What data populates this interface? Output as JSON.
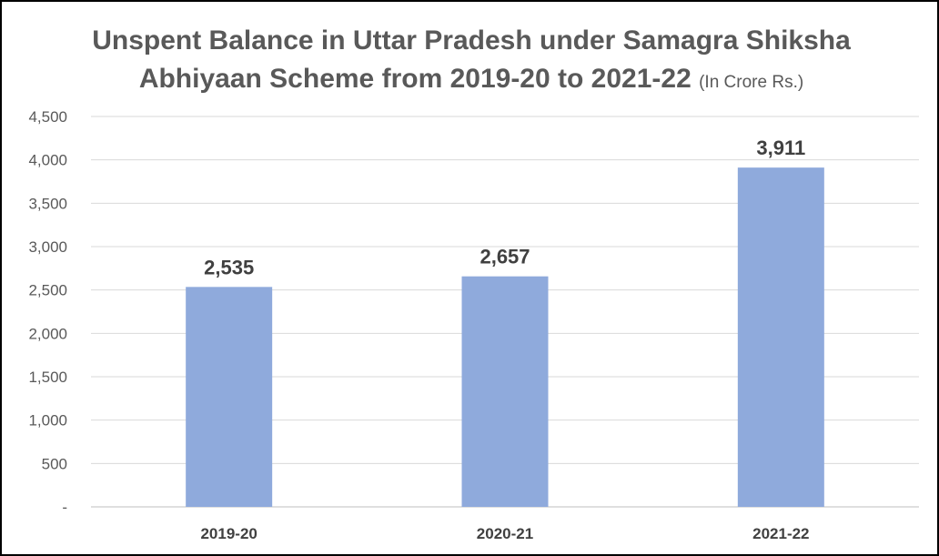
{
  "chart_data": {
    "type": "bar",
    "title_line1": "Unspent Balance in Uttar Pradesh under Samagra Shiksha",
    "title_line2": "Abhiyaan Scheme from 2019-20 to 2021-22",
    "subtitle": "(In Crore Rs.)",
    "xlabel": "",
    "ylabel": "",
    "categories": [
      "2019-20",
      "2020-21",
      "2021-22"
    ],
    "values": [
      2535,
      2657,
      3911
    ],
    "data_labels": [
      "2,535",
      "2,657",
      "3,911"
    ],
    "ylim": [
      0,
      4500
    ],
    "yticks": [
      0,
      500,
      1000,
      1500,
      2000,
      2500,
      3000,
      3500,
      4000,
      4500
    ],
    "ytick_labels": [
      "-",
      "500",
      "1,000",
      "1,500",
      "2,000",
      "2,500",
      "3,000",
      "3,500",
      "4,000",
      "4,500"
    ],
    "grid": true,
    "legend": "none",
    "colors": {
      "bar": "#8faadc",
      "grid": "#d9d9d9",
      "axis": "#bfbfbf",
      "text": "#595959"
    }
  }
}
